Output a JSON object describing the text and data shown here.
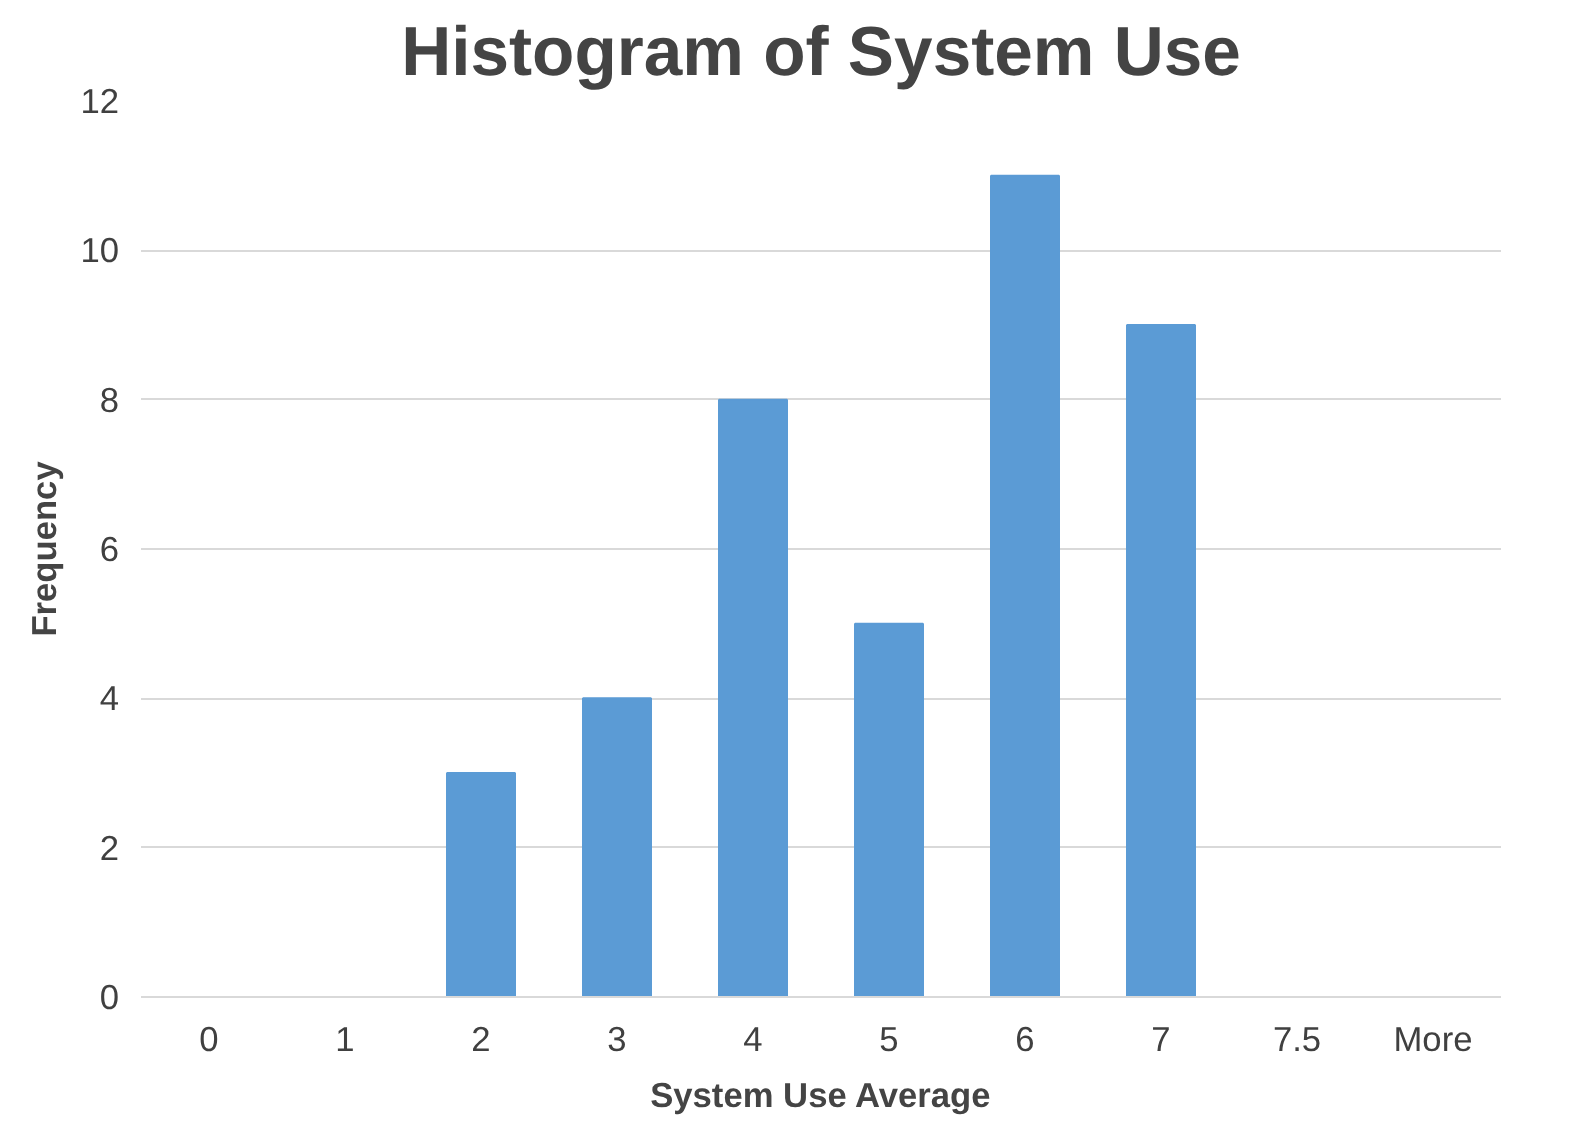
{
  "chart_data": {
    "type": "bar",
    "title": "Histogram of System Use",
    "xlabel": "System Use Average",
    "ylabel": "Frequency",
    "categories": [
      "0",
      "1",
      "2",
      "3",
      "4",
      "5",
      "6",
      "7",
      "7.5",
      "More"
    ],
    "values": [
      0,
      0,
      3,
      4,
      8,
      5,
      11,
      9,
      0,
      0
    ],
    "color": "#5b9bd5",
    "ylim": [
      0,
      12
    ],
    "yticks": [
      0,
      2,
      4,
      6,
      8,
      10,
      12
    ],
    "grid": "y"
  }
}
